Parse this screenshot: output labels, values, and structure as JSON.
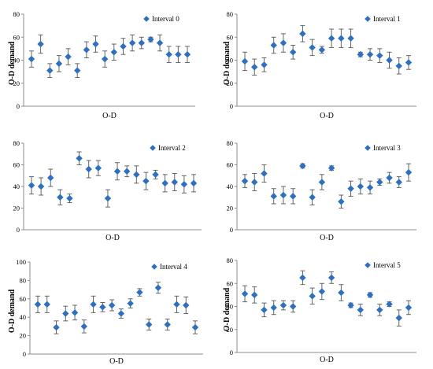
{
  "figure": {
    "colors": {
      "marker": "#2E6FBF",
      "errorbar": "#555555",
      "axis": "#8c8c8c"
    }
  },
  "chart_data": [
    {
      "type": "scatter",
      "xlabel": "O-D",
      "ylabel": "O-D demand",
      "ylim": [
        0,
        80
      ],
      "yticks": [
        0,
        20,
        40,
        60,
        80
      ],
      "legend": "top-right",
      "series": [
        {
          "name": "Interval 0",
          "values": [
            41,
            54,
            31,
            37,
            43,
            31,
            49,
            54,
            41,
            47,
            52,
            55,
            55,
            58,
            55,
            45,
            45,
            45
          ],
          "errors": [
            7,
            8,
            6,
            7,
            7,
            6,
            7,
            7,
            7,
            7,
            7,
            7,
            5,
            2,
            7,
            7,
            7,
            7
          ]
        }
      ]
    },
    {
      "type": "scatter",
      "xlabel": "O-D",
      "ylabel": "O-D demand",
      "ylim": [
        0,
        80
      ],
      "yticks": [
        0,
        20,
        40,
        60,
        80
      ],
      "legend": "top-right",
      "series": [
        {
          "name": "Interval 1",
          "values": [
            39,
            34,
            36,
            53,
            55,
            47,
            63,
            51,
            49,
            59,
            59,
            59,
            45,
            45,
            44,
            40,
            35,
            38
          ],
          "errors": [
            8,
            7,
            6,
            7,
            8,
            6,
            7,
            7,
            3,
            8,
            8,
            8,
            2,
            5,
            6,
            7,
            7,
            6
          ]
        }
      ]
    },
    {
      "type": "scatter",
      "xlabel": "O-D",
      "ylabel": "",
      "ylim": [
        0,
        80
      ],
      "yticks": [
        0,
        20,
        40,
        60,
        80
      ],
      "legend": "top-right",
      "series": [
        {
          "name": "Interval 2",
          "values": [
            41,
            40,
            48,
            30,
            29,
            66,
            56,
            57,
            29,
            54,
            54,
            51,
            45,
            51,
            43,
            44,
            42,
            43
          ],
          "errors": [
            8,
            8,
            8,
            7,
            4,
            6,
            8,
            7,
            8,
            8,
            5,
            8,
            8,
            4,
            8,
            8,
            8,
            8
          ]
        }
      ]
    },
    {
      "type": "scatter",
      "xlabel": "O-D",
      "ylabel": "",
      "ylim": [
        0,
        80
      ],
      "yticks": [
        0,
        20,
        40,
        60,
        80
      ],
      "legend": "top-right",
      "series": [
        {
          "name": "Interval 3",
          "values": [
            45,
            44,
            52,
            31,
            32,
            31,
            59,
            30,
            44,
            57,
            26,
            38,
            40,
            39,
            44,
            48,
            44,
            53
          ],
          "errors": [
            6,
            8,
            8,
            7,
            8,
            7,
            2,
            7,
            7,
            2,
            6,
            7,
            7,
            6,
            3,
            5,
            5,
            8
          ]
        }
      ]
    },
    {
      "type": "scatter",
      "xlabel": "O-D",
      "ylabel": "O-D demand",
      "ylim": [
        0,
        100
      ],
      "yticks": [
        0,
        20,
        40,
        60,
        80,
        100
      ],
      "legend": "top-right",
      "series": [
        {
          "name": "Interval 4",
          "values": [
            54,
            54,
            29,
            44,
            45,
            30,
            54,
            51,
            53,
            44,
            55,
            67,
            32,
            72,
            32,
            54,
            53,
            29
          ],
          "errors": [
            9,
            9,
            7,
            8,
            8,
            7,
            9,
            5,
            6,
            5,
            5,
            4,
            6,
            6,
            6,
            9,
            9,
            7
          ]
        }
      ]
    },
    {
      "type": "scatter",
      "xlabel": "O-D",
      "ylabel": "O-D demand",
      "ylim": [
        0,
        80
      ],
      "yticks": [
        0,
        20,
        40,
        60,
        80
      ],
      "legend": "top-right",
      "series": [
        {
          "name": "Interval 5",
          "values": [
            51,
            50,
            37,
            39,
            41,
            40,
            65,
            49,
            53,
            65,
            52,
            41,
            37,
            50,
            37,
            42,
            30,
            39
          ],
          "errors": [
            7,
            7,
            6,
            6,
            4,
            5,
            6,
            7,
            7,
            5,
            7,
            2,
            5,
            2,
            5,
            2,
            7,
            6
          ]
        }
      ]
    }
  ]
}
